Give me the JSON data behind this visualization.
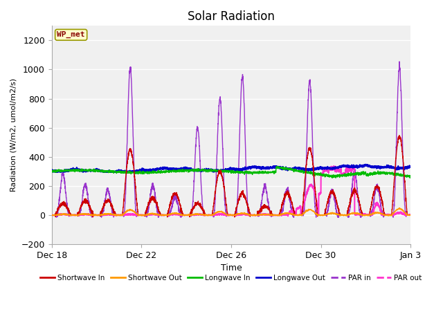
{
  "title": "Solar Radiation",
  "xlabel": "Time",
  "ylabel": "Radiation (W/m2, umol/m2/s)",
  "ylim": [
    -200,
    1300
  ],
  "yticks": [
    -200,
    0,
    200,
    400,
    600,
    800,
    1000,
    1200
  ],
  "plot_bg_color": "#f0f0f0",
  "fig_bg_color": "#ffffff",
  "grid_color": "#ffffff",
  "station_label": "WP_met",
  "station_box_color": "#ffffcc",
  "station_border_color": "#999900",
  "station_text_color": "#880000",
  "series": {
    "shortwave_in": {
      "color": "#cc0000",
      "label": "Shortwave In",
      "lw": 1.0
    },
    "shortwave_out": {
      "color": "#ff9900",
      "label": "Shortwave Out",
      "lw": 1.0
    },
    "longwave_in": {
      "color": "#00bb00",
      "label": "Longwave In",
      "lw": 1.0
    },
    "longwave_out": {
      "color": "#0000cc",
      "label": "Longwave Out",
      "lw": 1.5
    },
    "par_in": {
      "color": "#9933cc",
      "label": "PAR in",
      "lw": 1.0
    },
    "par_out": {
      "color": "#ff33cc",
      "label": "PAR out",
      "lw": 1.5
    }
  },
  "xticklabels": [
    "Dec 18",
    "Dec 22",
    "Dec 26",
    "Dec 30",
    "Jan 3"
  ],
  "xtick_positions": [
    0,
    4,
    8,
    12,
    16
  ]
}
